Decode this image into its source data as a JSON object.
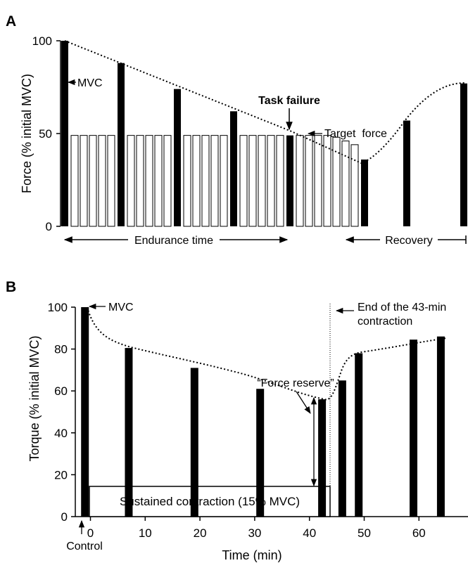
{
  "chart_data": [
    {
      "panel_label": "A",
      "type": "bar",
      "ylabel": "Force (% initial MVC)",
      "yticks": [
        0,
        50,
        100
      ],
      "ylim": [
        0,
        100
      ],
      "mvc_bars": [
        100,
        88,
        74,
        62,
        49,
        36
      ],
      "submax_bars": [
        49,
        49,
        49,
        49,
        49,
        49,
        49,
        49,
        49,
        49,
        49,
        49,
        49,
        49,
        49,
        49,
        49,
        49,
        49,
        49,
        49,
        49,
        49,
        49,
        48,
        46,
        44,
        42,
        40,
        38,
        36
      ],
      "recovery_bars": [
        57,
        77
      ],
      "annotations": {
        "mvc": "MVC",
        "task_failure": "Task failure",
        "target_force": "Target  force",
        "endurance_time": "Endurance time",
        "recovery": "Recovery"
      }
    },
    {
      "panel_label": "B",
      "type": "bar",
      "xlabel": "Time (min)",
      "ylabel": "Torque (% initial MVC)",
      "xticks": [
        0,
        10,
        20,
        30,
        40,
        50,
        60
      ],
      "yticks": [
        0,
        20,
        40,
        60,
        80,
        100
      ],
      "xlim": [
        -1.5,
        65.5
      ],
      "ylim": [
        0,
        100
      ],
      "bars": [
        {
          "x": -1.0,
          "y": 100
        },
        {
          "x": 7.0,
          "y": 80.5
        },
        {
          "x": 19.0,
          "y": 71
        },
        {
          "x": 31.0,
          "y": 61
        },
        {
          "x": 42.3,
          "y": 56
        },
        {
          "x": 46.0,
          "y": 65
        },
        {
          "x": 49.0,
          "y": 78
        },
        {
          "x": 59.0,
          "y": 84.5
        },
        {
          "x": 64.0,
          "y": 86
        }
      ],
      "annotations": {
        "mvc": "MVC",
        "control": "Control",
        "force_reserve": "“Force reserve”",
        "end_line1": "End of the 43-min",
        "end_line2": "contraction",
        "sustained": "Sustained contraction (15% MVC)"
      }
    }
  ]
}
